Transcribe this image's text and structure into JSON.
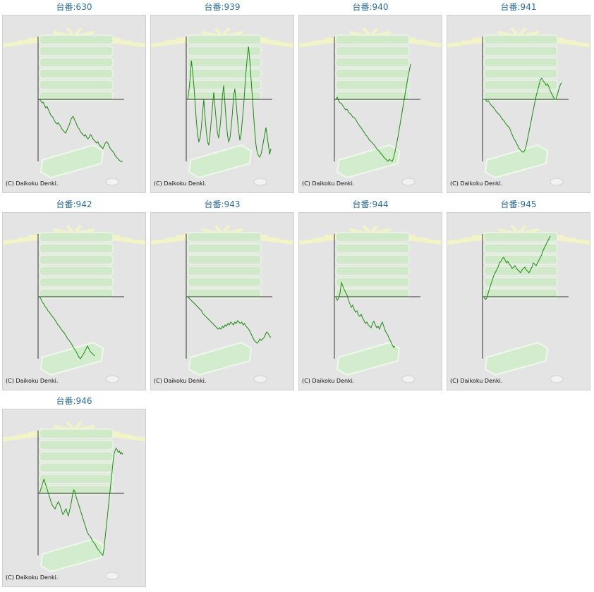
{
  "copyright": "(C) Daikoku Denki.",
  "colors": {
    "line": "#1c8a10",
    "axis": "#333333",
    "title": "#2c6c96",
    "background": "#e4e4e4"
  },
  "graphs": [
    {
      "title": "台番:630",
      "series": [
        0,
        -2,
        -5,
        -4,
        -8,
        -12,
        -10,
        -14,
        -18,
        -22,
        -24,
        -26,
        -30,
        -33,
        -35,
        -33,
        -36,
        -38,
        -42,
        -44,
        -46,
        -48,
        -44,
        -40,
        -36,
        -30,
        -26,
        -24,
        -28,
        -32,
        -36,
        -40,
        -42,
        -46,
        -48,
        -50,
        -52,
        -50,
        -54,
        -56,
        -54,
        -50,
        -52,
        -56,
        -58,
        -60,
        -62,
        -60,
        -64,
        -66,
        -68,
        -70,
        -66,
        -62,
        -60,
        -62,
        -66,
        -70,
        -72,
        -74,
        -76,
        -80,
        -82,
        -84,
        -86,
        -88,
        -90,
        -92
      ]
    },
    {
      "title": "台番:939",
      "series": [
        0,
        12,
        30,
        55,
        40,
        20,
        -5,
        -30,
        -50,
        -60,
        -55,
        -40,
        -20,
        0,
        -25,
        -45,
        -60,
        -65,
        -50,
        -30,
        -10,
        10,
        -10,
        -30,
        -48,
        -55,
        -40,
        -20,
        5,
        20,
        -5,
        -30,
        -50,
        -60,
        -55,
        -40,
        -20,
        5,
        15,
        -5,
        -25,
        -45,
        -58,
        -50,
        -30,
        -10,
        15,
        40,
        60,
        75,
        55,
        30,
        5,
        -20,
        -45,
        -65,
        -75,
        -80,
        -82,
        -78,
        -70,
        -60,
        -50,
        -40,
        -52,
        -65,
        -78,
        -70
      ]
    },
    {
      "title": "台番:940",
      "series": [
        0,
        3,
        -2,
        -5,
        -6,
        -9,
        -12,
        -15,
        -14,
        -18,
        -20,
        -22,
        -25,
        -26,
        -28,
        -32,
        -35,
        -38,
        -40,
        -44,
        -46,
        -50,
        -52,
        -55,
        -58,
        -60,
        -62,
        -64,
        -67,
        -70,
        -72,
        -74,
        -77,
        -79,
        -82,
        -84,
        -86,
        -88,
        -85,
        -87,
        -88,
        -82,
        -74,
        -64,
        -54,
        -42,
        -30,
        -18,
        -6,
        6,
        18,
        30,
        40,
        50
      ]
    },
    {
      "title": "台番:941",
      "series": [
        0,
        0,
        -3,
        -2,
        -5,
        -8,
        -10,
        -12,
        -15,
        -18,
        -20,
        -22,
        -25,
        -28,
        -30,
        -33,
        -36,
        -38,
        -40,
        -45,
        -50,
        -55,
        -58,
        -62,
        -66,
        -70,
        -72,
        -74,
        -75,
        -72,
        -65,
        -55,
        -45,
        -35,
        -25,
        -15,
        -5,
        5,
        12,
        20,
        28,
        30,
        26,
        24,
        20,
        22,
        18,
        12,
        8,
        4,
        0,
        0,
        6,
        14,
        20,
        24
      ]
    },
    {
      "title": "台番:942",
      "series": [
        0,
        -3,
        -8,
        -10,
        -14,
        -16,
        -20,
        -22,
        -25,
        -28,
        -30,
        -33,
        -36,
        -40,
        -42,
        -45,
        -48,
        -50,
        -53,
        -56,
        -60,
        -62,
        -65,
        -68,
        -72,
        -75,
        -78,
        -82,
        -86,
        -88,
        -85,
        -82,
        -78,
        -74,
        -70,
        -74,
        -78,
        -80,
        -82,
        -84
      ]
    },
    {
      "title": "台番:943",
      "series": [
        0,
        -2,
        -4,
        -6,
        -8,
        -10,
        -12,
        -14,
        -16,
        -18,
        -20,
        -24,
        -26,
        -28,
        -30,
        -32,
        -34,
        -36,
        -38,
        -40,
        -42,
        -44,
        -46,
        -44,
        -46,
        -42,
        -44,
        -40,
        -42,
        -38,
        -40,
        -36,
        -38,
        -40,
        -36,
        -38,
        -34,
        -36,
        -38,
        -36,
        -40,
        -38,
        -42,
        -44,
        -46,
        -50,
        -54,
        -58,
        -62,
        -64,
        -66,
        -64,
        -60,
        -62,
        -60,
        -58,
        -54,
        -50,
        -52,
        -56,
        -58
      ]
    },
    {
      "title": "台番:944",
      "series": [
        0,
        -5,
        -2,
        5,
        20,
        15,
        10,
        6,
        2,
        -5,
        -10,
        -15,
        -12,
        -18,
        -22,
        -20,
        -26,
        -28,
        -25,
        -30,
        -34,
        -38,
        -36,
        -40,
        -42,
        -44,
        -38,
        -35,
        -40,
        -44,
        -42,
        -46,
        -40,
        -36,
        -42,
        -48,
        -52,
        -55,
        -60,
        -64,
        -68,
        -72,
        -70
      ]
    },
    {
      "title": "台番:945",
      "series": [
        0,
        -4,
        -2,
        5,
        12,
        18,
        24,
        30,
        34,
        38,
        42,
        48,
        50,
        54,
        56,
        52,
        48,
        50,
        46,
        44,
        40,
        42,
        44,
        40,
        38,
        36,
        34,
        38,
        40,
        42,
        38,
        36,
        34,
        38,
        42,
        48,
        46,
        44,
        48,
        52,
        56,
        60,
        66,
        70,
        74,
        78,
        82,
        86
      ]
    },
    {
      "title": "台番:946",
      "series": [
        0,
        5,
        10,
        15,
        20,
        15,
        10,
        5,
        0,
        -5,
        -10,
        -15,
        -18,
        -20,
        -22,
        -18,
        -15,
        -12,
        -15,
        -20,
        -25,
        -30,
        -28,
        -24,
        -22,
        -28,
        -32,
        -25,
        -18,
        -10,
        0,
        5,
        2,
        -5,
        -10,
        -15,
        -20,
        -25,
        -30,
        -35,
        -40,
        -45,
        -50,
        -55,
        -58,
        -60,
        -62,
        -65,
        -68,
        -70,
        -72,
        -75,
        -78,
        -80,
        -82,
        -84,
        -86,
        -88,
        -80,
        -65,
        -50,
        -35,
        -20,
        -5,
        10,
        25,
        40,
        55,
        60,
        64,
        62,
        58,
        60,
        56,
        58,
        55
      ]
    }
  ]
}
